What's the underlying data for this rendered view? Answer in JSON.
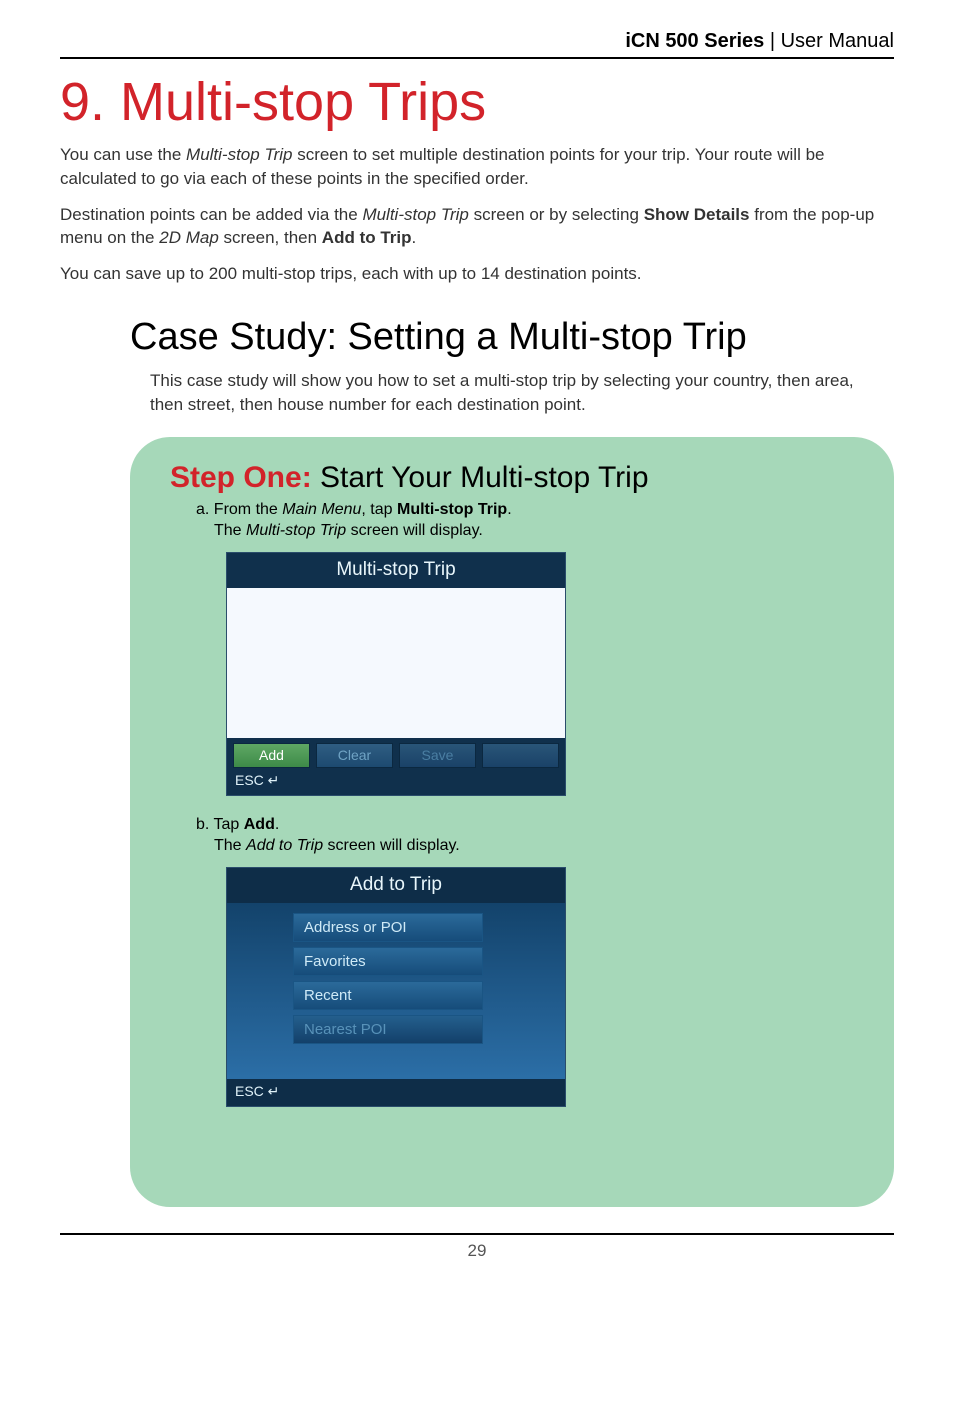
{
  "header": {
    "series": "iCN 500 Series",
    "divider": " | ",
    "doc": "User Manual"
  },
  "title": "9. Multi-stop Trips",
  "intro": {
    "p1a": "You can use the ",
    "p1b_ital": "Multi-stop Trip",
    "p1c": " screen to set multiple destination points for your trip. Your route will be calculated to go via each of these points in the specified order.",
    "p2a": "Destination points can be added via the ",
    "p2b_ital": "Multi-stop Trip",
    "p2c": " screen or by selecting ",
    "p2d_bold": "Show Details",
    "p2e": " from the pop-up menu on the ",
    "p2f_ital": "2D Map",
    "p2g": " screen, then ",
    "p2h_bold": "Add to Trip",
    "p2i": ".",
    "p3": "You can save up to 200 multi-stop trips, each with up to 14 destination points."
  },
  "case": {
    "heading": "Case Study: Setting a Multi-stop Trip",
    "intro": "This case study will show you how to set a multi-stop trip by selecting your country, then area, then street, then house number for each destination point."
  },
  "step1": {
    "label_red": "Step One:",
    "label_rest": " Start Your Multi-stop Trip",
    "a_pre": "a. From the ",
    "a_ital": "Main Menu",
    "a_mid": ", tap ",
    "a_bold": "Multi-stop Trip",
    "a_post": ".",
    "a_sub_pre": "The ",
    "a_sub_ital": "Multi-stop Trip",
    "a_sub_post": " screen will display.",
    "b_pre": "b. Tap ",
    "b_bold": "Add",
    "b_post": ".",
    "b_sub_pre": "The ",
    "b_sub_ital": "Add to Trip",
    "b_sub_post": " screen will display."
  },
  "screenshot1": {
    "title": "Multi-stop Trip",
    "btn_add": "Add",
    "btn_clear": "Clear",
    "btn_save": "Save",
    "btn_blank": "",
    "footer": "ESC ↵",
    "colors": {
      "titlebar": "#10304c",
      "body": "#f5f9fe",
      "frame": "#0b2840"
    }
  },
  "screenshot2": {
    "title": "Add to Trip",
    "items": [
      "Address or POI",
      "Favorites",
      "Recent",
      "Nearest POI"
    ],
    "footer": "ESC ↵",
    "colors": {
      "titlebar": "#0e2d48",
      "bg_top": "#0e3a5f",
      "bg_bot": "#2f75b0"
    }
  },
  "page_number": "29"
}
